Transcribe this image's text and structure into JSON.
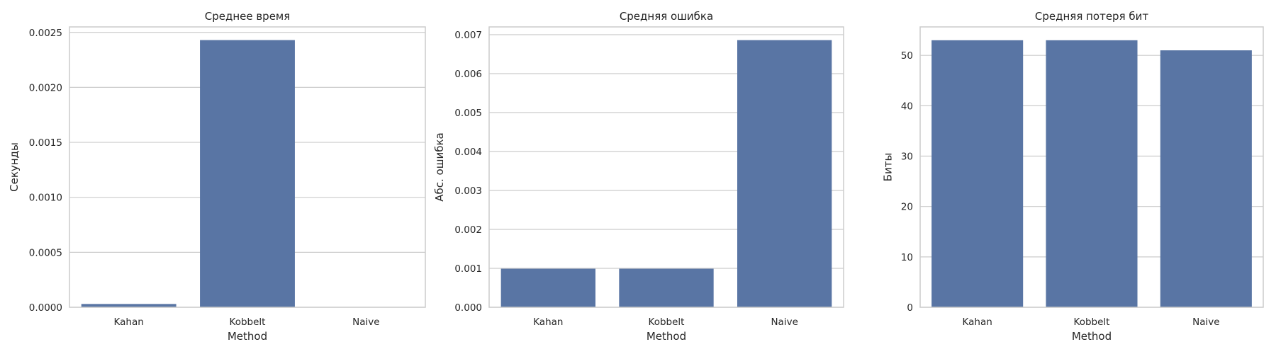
{
  "chart_data": [
    {
      "type": "bar",
      "title": "Среднее время",
      "xlabel": "Method",
      "ylabel": "Секунды",
      "categories": [
        "Kahan",
        "Kobbelt",
        "Naive"
      ],
      "values": [
        3e-05,
        0.00243,
        0.0
      ],
      "ylim": [
        0,
        0.00255
      ],
      "yticks": [
        0.0,
        0.0005,
        0.001,
        0.0015,
        0.002,
        0.0025
      ],
      "ytick_labels": [
        "0.0000",
        "0.0005",
        "0.0010",
        "0.0015",
        "0.0020",
        "0.0025"
      ],
      "grid": true,
      "bar_color": "#5975a4"
    },
    {
      "type": "bar",
      "title": "Средняя ошибка",
      "xlabel": "Method",
      "ylabel": "Абс. ошибка",
      "categories": [
        "Kahan",
        "Kobbelt",
        "Naive"
      ],
      "values": [
        0.00099,
        0.00099,
        0.00686
      ],
      "ylim": [
        0,
        0.0072
      ],
      "yticks": [
        0.0,
        0.001,
        0.002,
        0.003,
        0.004,
        0.005,
        0.006,
        0.007
      ],
      "ytick_labels": [
        "0.000",
        "0.001",
        "0.002",
        "0.003",
        "0.004",
        "0.005",
        "0.006",
        "0.007"
      ],
      "grid": true,
      "bar_color": "#5975a4"
    },
    {
      "type": "bar",
      "title": "Средняя потеря бит",
      "xlabel": "Method",
      "ylabel": "Биты",
      "categories": [
        "Kahan",
        "Kobbelt",
        "Naive"
      ],
      "values": [
        53,
        53,
        51
      ],
      "ylim": [
        0,
        55.65
      ],
      "yticks": [
        0,
        10,
        20,
        30,
        40,
        50
      ],
      "ytick_labels": [
        "0",
        "10",
        "20",
        "30",
        "40",
        "50"
      ],
      "grid": true,
      "bar_color": "#5975a4"
    }
  ]
}
